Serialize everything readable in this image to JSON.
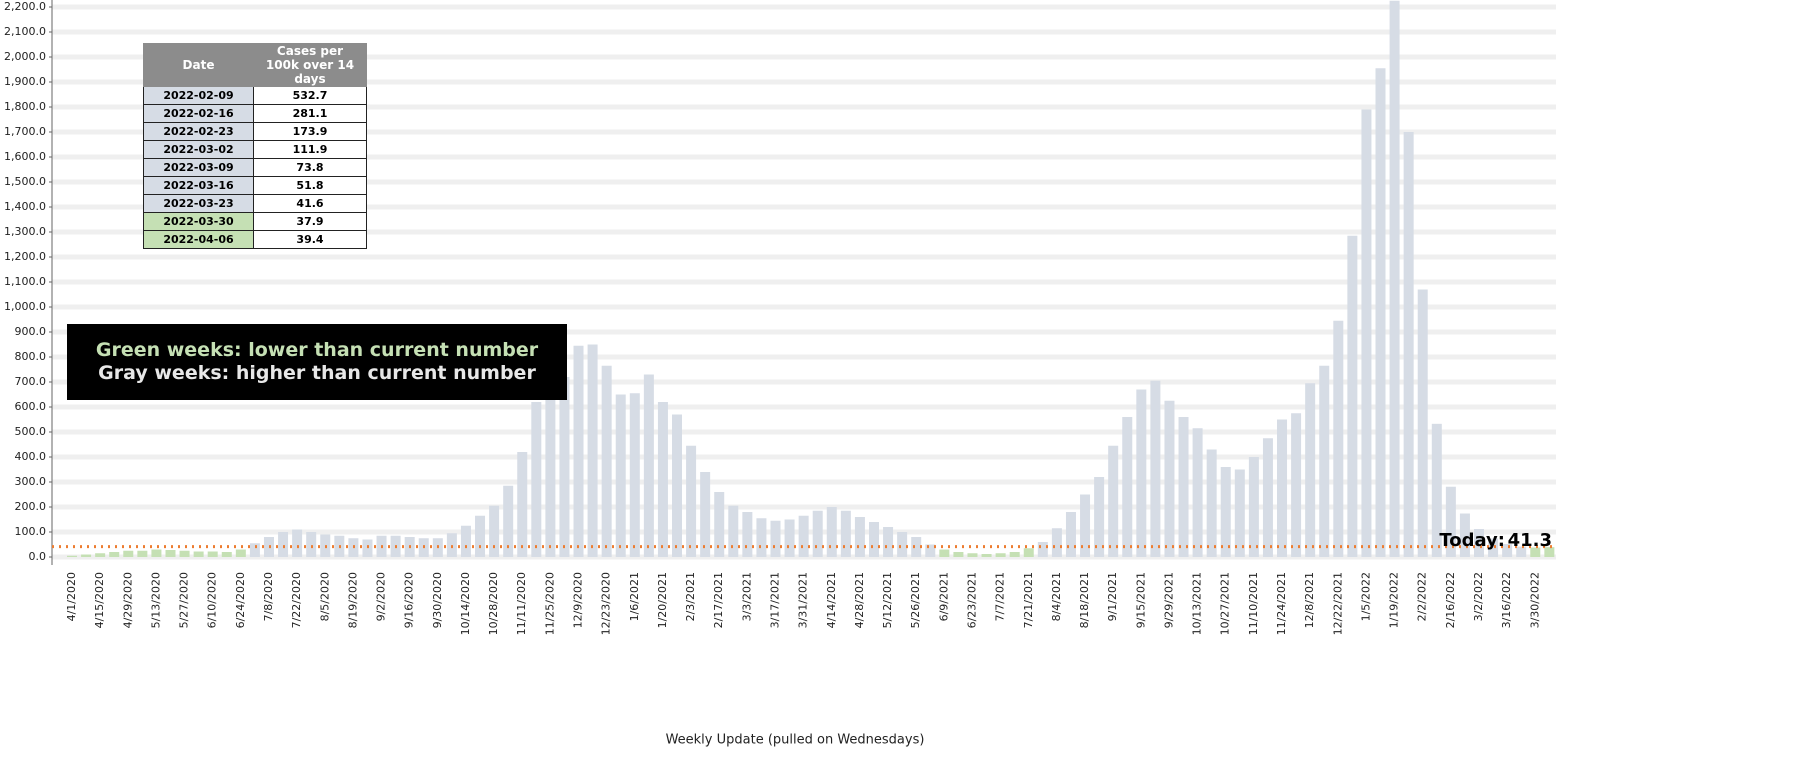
{
  "chart_data": {
    "type": "bar",
    "xlabel": "Weekly Update (pulled on Wednesdays)",
    "categories": [
      "4/1/2020",
      null,
      "4/15/2020",
      null,
      "4/29/2020",
      null,
      "5/13/2020",
      null,
      "5/27/2020",
      null,
      "6/10/2020",
      null,
      "6/24/2020",
      null,
      "7/8/2020",
      null,
      "7/22/2020",
      null,
      "8/5/2020",
      null,
      "8/19/2020",
      null,
      "9/2/2020",
      null,
      "9/16/2020",
      null,
      "9/30/2020",
      null,
      "10/14/2020",
      null,
      "10/28/2020",
      null,
      "11/11/2020",
      null,
      "11/25/2020",
      null,
      "12/9/2020",
      null,
      "12/23/2020",
      null,
      "1/6/2021",
      null,
      "1/20/2021",
      null,
      "2/3/2021",
      null,
      "2/17/2021",
      null,
      "3/3/2021",
      null,
      "3/17/2021",
      null,
      "3/31/2021",
      null,
      "4/14/2021",
      null,
      "4/28/2021",
      null,
      "5/12/2021",
      null,
      "5/26/2021",
      null,
      "6/9/2021",
      null,
      "6/23/2021",
      null,
      "7/7/2021",
      null,
      "7/21/2021",
      null,
      "8/4/2021",
      null,
      "8/18/2021",
      null,
      "9/1/2021",
      null,
      "9/15/2021",
      null,
      "9/29/2021",
      null,
      "10/13/2021",
      null,
      "10/27/2021",
      null,
      "11/10/2021",
      null,
      "11/24/2021",
      null,
      "12/8/2021",
      null,
      "12/22/2021",
      null,
      "1/5/2022",
      null,
      "1/19/2022",
      null,
      "2/2/2022",
      null,
      "2/16/2022",
      null,
      "3/2/2022",
      null,
      "3/16/2022",
      null,
      "3/30/2022",
      null
    ],
    "values": [
      5,
      10,
      15,
      20,
      25,
      25,
      30,
      28,
      25,
      22,
      22,
      20,
      30,
      55,
      80,
      100,
      110,
      100,
      90,
      85,
      75,
      70,
      85,
      85,
      80,
      75,
      75,
      95,
      125,
      165,
      205,
      285,
      420,
      620,
      650,
      720,
      845,
      850,
      765,
      650,
      655,
      730,
      620,
      570,
      445,
      340,
      260,
      205,
      180,
      155,
      145,
      150,
      165,
      185,
      200,
      185,
      160,
      140,
      120,
      100,
      80,
      50,
      30,
      20,
      15,
      12,
      15,
      20,
      35,
      60,
      115,
      180,
      250,
      320,
      445,
      560,
      670,
      705,
      625,
      560,
      515,
      430,
      360,
      350,
      400,
      475,
      550,
      575,
      695,
      765,
      945,
      1285,
      1790,
      1955,
      2225,
      1700,
      1070,
      532.7,
      281.1,
      173.9,
      111.9,
      73.8,
      51.8,
      41.6,
      37.9,
      39.4
    ],
    "color_higher": "#d6dce5",
    "color_lower": "#c5e0b4",
    "reference_value": 41.3,
    "reference_label": "Today:",
    "reference_color": "#ed7d31",
    "ylim": [
      -32,
      2228
    ],
    "yticks": [
      {
        "value": 0,
        "label": "0.0"
      },
      {
        "value": 100,
        "label": "100.0"
      },
      {
        "value": 200,
        "label": "200.0"
      },
      {
        "value": 300,
        "label": "300.0"
      },
      {
        "value": 400,
        "label": "400.0"
      },
      {
        "value": 500,
        "label": "500.0"
      },
      {
        "value": 600,
        "label": "600.0"
      },
      {
        "value": 700,
        "label": "700.0"
      },
      {
        "value": 800,
        "label": "800.0"
      },
      {
        "value": 900,
        "label": "900.0"
      },
      {
        "value": 1000,
        "label": "1,000.0"
      },
      {
        "value": 1100,
        "label": "1,100.0"
      },
      {
        "value": 1200,
        "label": "1,200.0"
      },
      {
        "value": 1300,
        "label": "1,300.0"
      },
      {
        "value": 1400,
        "label": "1,400.0"
      },
      {
        "value": 1500,
        "label": "1,500.0"
      },
      {
        "value": 1600,
        "label": "1,600.0"
      },
      {
        "value": 1700,
        "label": "1,700.0"
      },
      {
        "value": 1800,
        "label": "1,800.0"
      },
      {
        "value": 1900,
        "label": "1,900.0"
      },
      {
        "value": 2000,
        "label": "2,000.0"
      },
      {
        "value": 2100,
        "label": "2,100.0"
      },
      {
        "value": 2200,
        "label": "2,200.0"
      }
    ],
    "grid": true,
    "annotation": [
      "Green weeks: lower than current number",
      "Gray weeks: higher than current number"
    ]
  },
  "table": {
    "header": [
      "Date",
      "Cases per 100k over 14 days"
    ],
    "rows": [
      [
        "2022-02-09",
        532.7
      ],
      [
        "2022-02-16",
        281.1
      ],
      [
        "2022-02-23",
        173.9
      ],
      [
        "2022-03-02",
        111.9
      ],
      [
        "2022-03-09",
        73.8
      ],
      [
        "2022-03-16",
        51.8
      ],
      [
        "2022-03-23",
        41.6
      ],
      [
        "2022-03-30",
        37.9
      ],
      [
        "2022-04-06",
        39.4
      ]
    ]
  }
}
